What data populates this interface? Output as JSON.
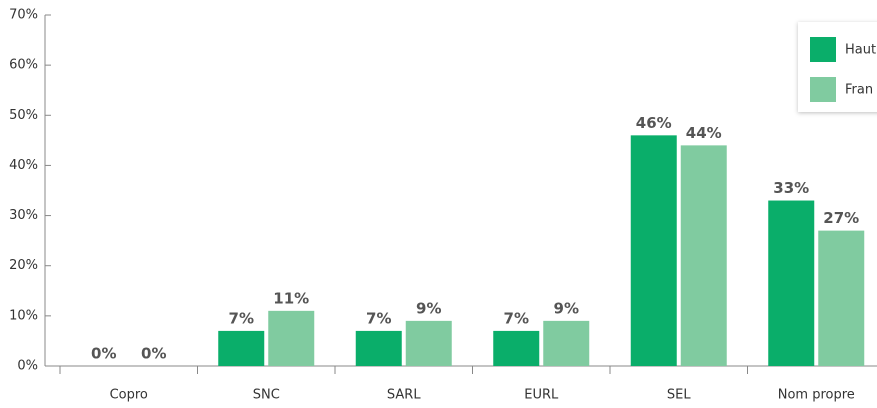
{
  "chart_data": {
    "type": "bar",
    "categories": [
      "Copro",
      "SNC",
      "SARL",
      "EURL",
      "SEL",
      "Nom propre"
    ],
    "series": [
      {
        "name": "Haut",
        "color": "#0aae6a",
        "values": [
          0,
          7,
          7,
          7,
          46,
          33
        ],
        "value_labels": [
          "0%",
          "7%",
          "7%",
          "7%",
          "46%",
          "33%"
        ]
      },
      {
        "name": "Fran",
        "color": "#80cba0",
        "values": [
          0,
          11,
          9,
          9,
          44,
          27
        ],
        "value_labels": [
          "0%",
          "11%",
          "9%",
          "9%",
          "44%",
          "27%"
        ]
      }
    ],
    "ylim": [
      0,
      70
    ],
    "yticks": [
      {
        "value": 0,
        "label": "0%"
      },
      {
        "value": 10,
        "label": "10%"
      },
      {
        "value": 20,
        "label": "20%"
      },
      {
        "value": 30,
        "label": "30%"
      },
      {
        "value": 40,
        "label": "40%"
      },
      {
        "value": 50,
        "label": "50%"
      },
      {
        "value": 60,
        "label": "60%"
      },
      {
        "value": 70,
        "label": "70%"
      }
    ],
    "legend": "top-right"
  }
}
